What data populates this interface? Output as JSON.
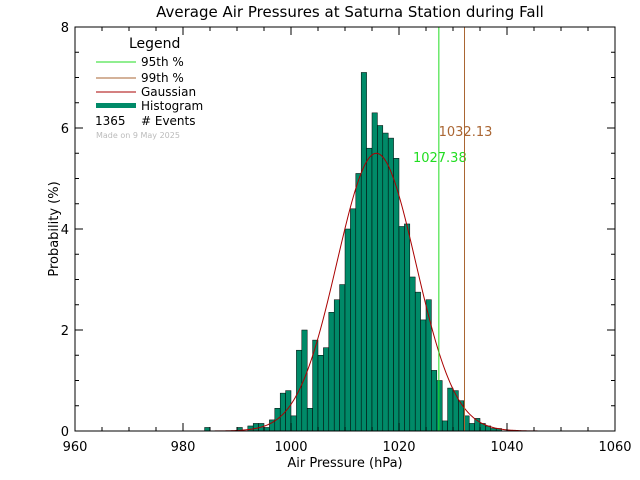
{
  "chart_data": {
    "type": "bar",
    "title": "Average Air Pressures at Saturna Station during Fall",
    "xlabel": "Air Pressure (hPa)",
    "ylabel": "Probability (%)",
    "xlim": [
      960,
      1060
    ],
    "ylim": [
      0,
      8
    ],
    "xticks": [
      "960",
      "980",
      "1000",
      "1020",
      "1040",
      "1060"
    ],
    "yticks": [
      "0",
      "2",
      "4",
      "6",
      "8"
    ],
    "bin_width": 1,
    "histogram": {
      "bin_start": [
        984,
        990,
        991,
        992,
        993,
        994,
        995,
        996,
        997,
        998,
        999,
        1000,
        1001,
        1002,
        1003,
        1004,
        1005,
        1006,
        1007,
        1008,
        1009,
        1010,
        1011,
        1012,
        1013,
        1014,
        1015,
        1016,
        1017,
        1018,
        1019,
        1020,
        1021,
        1022,
        1023,
        1024,
        1025,
        1026,
        1027,
        1028,
        1029,
        1030,
        1031,
        1032,
        1033,
        1034,
        1035,
        1036,
        1037,
        1038
      ],
      "values": [
        0.07,
        0.07,
        0.0,
        0.1,
        0.15,
        0.15,
        0.07,
        0.22,
        0.45,
        0.75,
        0.8,
        0.3,
        1.6,
        2.0,
        0.45,
        1.8,
        1.5,
        1.65,
        2.35,
        2.6,
        2.9,
        4.0,
        4.4,
        5.1,
        7.1,
        5.6,
        6.3,
        6.05,
        5.9,
        5.8,
        5.4,
        4.05,
        4.1,
        3.05,
        2.75,
        2.2,
        2.6,
        1.2,
        1.0,
        0.2,
        0.85,
        0.8,
        0.6,
        0.3,
        0.15,
        0.25,
        0.15,
        0.1,
        0.05,
        0.05
      ]
    },
    "gaussian": {
      "name": "Gaussian",
      "mean": 1015.8,
      "sigma": 7.3,
      "peak": 5.5
    },
    "percentiles": [
      {
        "name": "95th %",
        "value": 1027.38,
        "label": "1027.38",
        "color": "#22dd22"
      },
      {
        "name": "99th %",
        "value": 1032.13,
        "label": "1032.13",
        "color": "#aa6633"
      }
    ],
    "legend": {
      "title": "Legend",
      "entries": [
        "95th %",
        "99th %",
        "Gaussian",
        "Histogram"
      ],
      "events_count": "1365",
      "events_label": "# Events",
      "made_on": "Made on 9 May 2025"
    },
    "colors": {
      "histogram": "#008a68",
      "gaussian": "#aa0000",
      "axis": "#000000"
    }
  }
}
